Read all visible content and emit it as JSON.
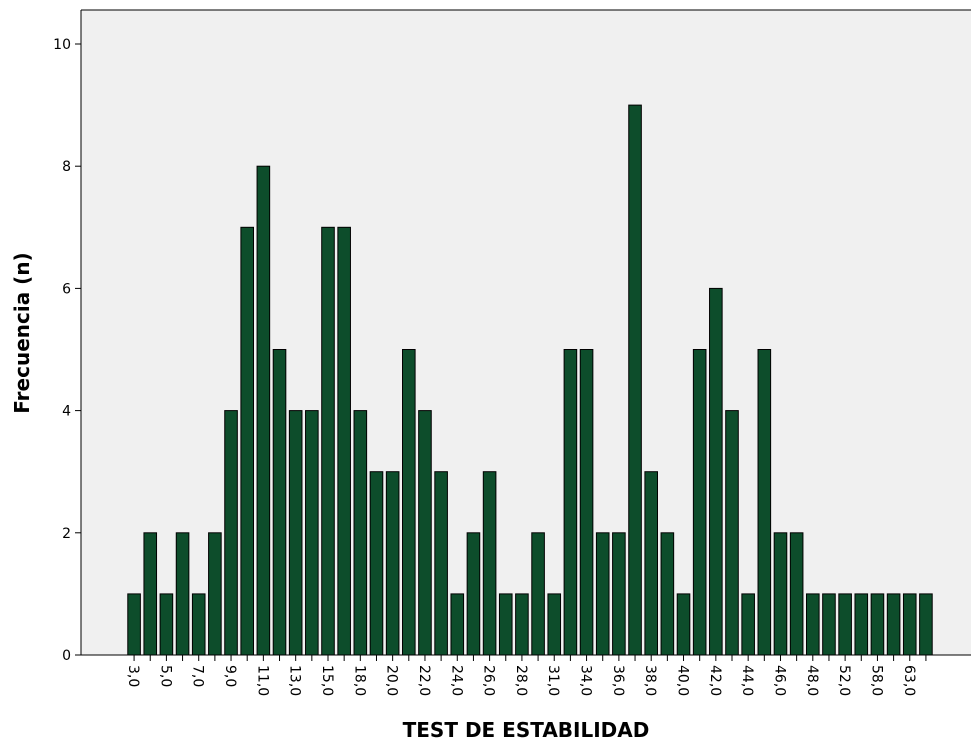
{
  "chart_data": {
    "type": "bar",
    "title": "",
    "xlabel": "TEST DE ESTABILIDAD",
    "ylabel": "Frecuencia (n)",
    "ylim": [
      0,
      10.5
    ],
    "yticks": [
      0,
      2,
      4,
      6,
      8,
      10
    ],
    "grid": false,
    "categories": [
      "3,0",
      "",
      "5,0",
      "",
      "7,0",
      "",
      "9,0",
      "",
      "11,0",
      "",
      "13,0",
      "",
      "15,0",
      "",
      "18,0",
      "",
      "20,0",
      "",
      "22,0",
      "",
      "24,0",
      "",
      "26,0",
      "",
      "28,0",
      "",
      "31,0",
      "",
      "34,0",
      "",
      "36,0",
      "",
      "38,0",
      "",
      "40,0",
      "",
      "42,0",
      "",
      "44,0",
      "",
      "46,0",
      "",
      "48,0",
      "",
      "52,0",
      "",
      "58,0",
      "",
      "63,0",
      ""
    ],
    "values": [
      1,
      2,
      1,
      2,
      1,
      2,
      4,
      7,
      8,
      5,
      4,
      4,
      7,
      7,
      4,
      3,
      3,
      5,
      4,
      3,
      1,
      2,
      3,
      1,
      1,
      2,
      1,
      5,
      5,
      2,
      2,
      9,
      3,
      2,
      1,
      5,
      6,
      4,
      1,
      5,
      2,
      2,
      1,
      1,
      1,
      1,
      1,
      1,
      1,
      1
    ],
    "colors": {
      "bar": "#0d4d2b",
      "bar_edge": "#000000",
      "plot_bg": "#f0f0f0",
      "frame": "#000000"
    }
  }
}
